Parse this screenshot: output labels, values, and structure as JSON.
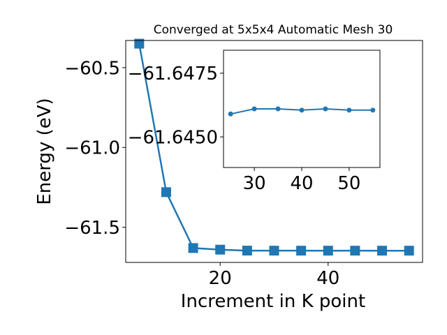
{
  "chart_data": [
    {
      "type": "line",
      "title": "Converged at 5x5x4 Automatic Mesh 30",
      "xlabel": "Increment in K point",
      "ylabel": "Energy (eV)",
      "xlim": [
        2.5,
        57.5
      ],
      "ylim": [
        -61.72,
        -60.33
      ],
      "xticks": [
        20,
        40
      ],
      "xtick_labels": [
        "20",
        "40"
      ],
      "yticks": [
        -60.5,
        -61.0,
        -61.5
      ],
      "ytick_labels": [
        "−60.5",
        "−61.0",
        "−61.5"
      ],
      "marker": "square",
      "grid": false,
      "color": "#1f77b4",
      "series": [
        {
          "x": [
            5,
            10,
            15,
            20,
            25,
            30,
            35,
            40,
            45,
            50,
            55
          ],
          "y": [
            -60.35,
            -61.28,
            -61.63,
            -61.64,
            -61.646,
            -61.6463,
            -61.6463,
            -61.6464,
            -61.6463,
            -61.6464,
            -61.6464
          ]
        }
      ]
    },
    {
      "type": "line",
      "title": "",
      "xlabel": "",
      "ylabel": "",
      "xlim": [
        23.5,
        56.5
      ],
      "ylim": [
        -61.6438,
        -61.6484
      ],
      "xticks": [
        30,
        40,
        50
      ],
      "xtick_labels": [
        "30",
        "40",
        "50"
      ],
      "yticks": [
        -61.6475,
        -61.645
      ],
      "ytick_labels": [
        "−61.6475",
        "−61.6450"
      ],
      "marker": "circle",
      "grid": false,
      "color": "#1f77b4",
      "series": [
        {
          "x": [
            25,
            30,
            35,
            40,
            45,
            50,
            55
          ],
          "y": [
            -61.6459,
            -61.6461,
            -61.6461,
            -61.64605,
            -61.6461,
            -61.64605,
            -61.64605
          ]
        }
      ]
    }
  ]
}
